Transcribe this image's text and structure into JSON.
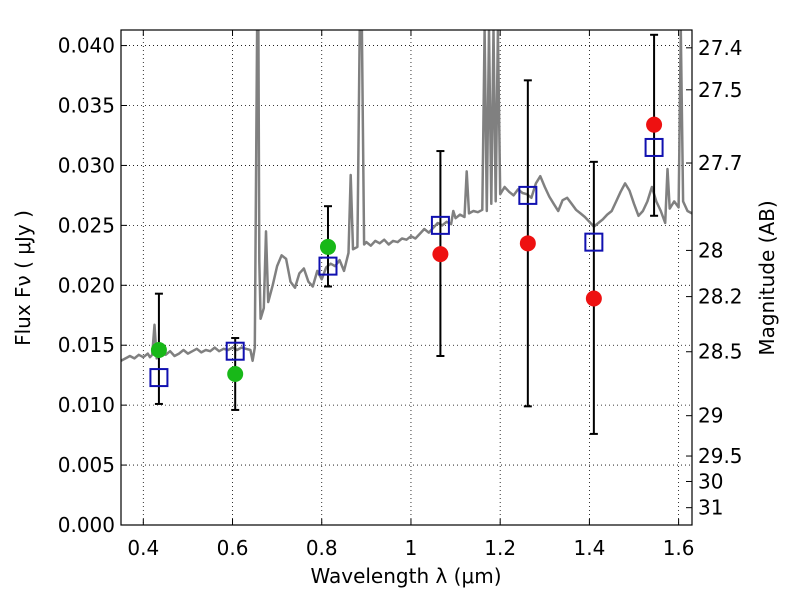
{
  "chart_data": {
    "type": "scatter",
    "xlabel": "Wavelength  λ (μm)",
    "ylabel": "Flux  Fν ( μJy )",
    "ylabel_right": "Magnitude (AB)",
    "xlim": [
      0.35,
      1.63
    ],
    "ylim": [
      0.0,
      0.0413
    ],
    "grid": true,
    "colors": {
      "green": "#18b818",
      "red": "#ee1111",
      "blue": "#1010b0",
      "spectrum": "#808080",
      "errorbar": "#000000"
    },
    "x_ticks": [
      0.4,
      0.6,
      0.8,
      1.0,
      1.2,
      1.4,
      1.6
    ],
    "x_tick_labels": [
      "0.4",
      "0.6",
      "0.8",
      "1",
      "1.2",
      "1.4",
      "1.6"
    ],
    "y_ticks": [
      0.0,
      0.005,
      0.01,
      0.015,
      0.02,
      0.025,
      0.03,
      0.035,
      0.04
    ],
    "y_tick_labels": [
      "0.000",
      "0.005",
      "0.010",
      "0.015",
      "0.020",
      "0.025",
      "0.030",
      "0.035",
      "0.040"
    ],
    "right_ticks": [
      {
        "mag": 27.4,
        "label": "27.4"
      },
      {
        "mag": 27.5,
        "label": "27.5"
      },
      {
        "mag": 27.7,
        "label": "27.7"
      },
      {
        "mag": 28.0,
        "label": "28"
      },
      {
        "mag": 28.2,
        "label": "28.2"
      },
      {
        "mag": 28.5,
        "label": "28.5"
      },
      {
        "mag": 29.0,
        "label": "29"
      },
      {
        "mag": 29.5,
        "label": "29.5"
      },
      {
        "mag": 30.0,
        "label": "30"
      },
      {
        "mag": 31.0,
        "label": "31"
      }
    ],
    "series": [
      {
        "marker": "circle",
        "color": "green",
        "points": [
          {
            "x": 0.435,
            "y": 0.0146
          },
          {
            "x": 0.606,
            "y": 0.0126
          },
          {
            "x": 0.814,
            "y": 0.0232
          }
        ]
      },
      {
        "marker": "circle",
        "color": "red",
        "points": [
          {
            "x": 1.066,
            "y": 0.0226
          },
          {
            "x": 1.262,
            "y": 0.0235
          },
          {
            "x": 1.41,
            "y": 0.0189
          },
          {
            "x": 1.545,
            "y": 0.0334
          }
        ]
      },
      {
        "marker": "square",
        "color": "blue",
        "points": [
          {
            "x": 0.435,
            "y": 0.0123,
            "yerr_low": 0.0101,
            "yerr_high": 0.0193
          },
          {
            "x": 0.606,
            "y": 0.0145,
            "yerr_low": 0.0096,
            "yerr_high": 0.0156
          },
          {
            "x": 0.814,
            "y": 0.0216,
            "yerr_low": 0.0199,
            "yerr_high": 0.0266
          },
          {
            "x": 1.066,
            "y": 0.025,
            "yerr_low": 0.0141,
            "yerr_high": 0.0312
          },
          {
            "x": 1.262,
            "y": 0.0275,
            "yerr_low": 0.0099,
            "yerr_high": 0.0371
          },
          {
            "x": 1.41,
            "y": 0.0236,
            "yerr_low": 0.0076,
            "yerr_high": 0.0303
          },
          {
            "x": 1.545,
            "y": 0.0315,
            "yerr_low": 0.0258,
            "yerr_high": 0.0409
          }
        ]
      },
      {
        "type": "line",
        "color": "spectrum",
        "points": [
          [
            0.35,
            0.0137
          ],
          [
            0.36,
            0.0139
          ],
          [
            0.37,
            0.0141
          ],
          [
            0.38,
            0.0139
          ],
          [
            0.39,
            0.0142
          ],
          [
            0.4,
            0.014
          ],
          [
            0.41,
            0.0143
          ],
          [
            0.415,
            0.014
          ],
          [
            0.42,
            0.0142
          ],
          [
            0.425,
            0.0167
          ],
          [
            0.43,
            0.0139
          ],
          [
            0.44,
            0.0144
          ],
          [
            0.45,
            0.0142
          ],
          [
            0.46,
            0.0145
          ],
          [
            0.47,
            0.0141
          ],
          [
            0.48,
            0.0143
          ],
          [
            0.49,
            0.0146
          ],
          [
            0.5,
            0.0143
          ],
          [
            0.51,
            0.0145
          ],
          [
            0.52,
            0.0147
          ],
          [
            0.53,
            0.0144
          ],
          [
            0.54,
            0.0146
          ],
          [
            0.55,
            0.0145
          ],
          [
            0.56,
            0.0148
          ],
          [
            0.57,
            0.0145
          ],
          [
            0.58,
            0.0147
          ],
          [
            0.59,
            0.0146
          ],
          [
            0.6,
            0.0148
          ],
          [
            0.61,
            0.0146
          ],
          [
            0.62,
            0.0148
          ],
          [
            0.63,
            0.0147
          ],
          [
            0.64,
            0.0146
          ],
          [
            0.645,
            0.0137
          ],
          [
            0.65,
            0.0148
          ],
          [
            0.655,
            0.0413
          ],
          [
            0.658,
            0.0413
          ],
          [
            0.66,
            0.022
          ],
          [
            0.663,
            0.0172
          ],
          [
            0.67,
            0.0181
          ],
          [
            0.675,
            0.0245
          ],
          [
            0.68,
            0.0186
          ],
          [
            0.69,
            0.02
          ],
          [
            0.7,
            0.0216
          ],
          [
            0.71,
            0.0225
          ],
          [
            0.72,
            0.0222
          ],
          [
            0.73,
            0.0203
          ],
          [
            0.74,
            0.0198
          ],
          [
            0.75,
            0.021
          ],
          [
            0.76,
            0.0214
          ],
          [
            0.77,
            0.0203
          ],
          [
            0.78,
            0.0199
          ],
          [
            0.79,
            0.0212
          ],
          [
            0.8,
            0.0205
          ],
          [
            0.81,
            0.0215
          ],
          [
            0.82,
            0.0218
          ],
          [
            0.83,
            0.0216
          ],
          [
            0.84,
            0.0221
          ],
          [
            0.85,
            0.0212
          ],
          [
            0.86,
            0.0227
          ],
          [
            0.865,
            0.0292
          ],
          [
            0.87,
            0.023
          ],
          [
            0.88,
            0.0232
          ],
          [
            0.885,
            0.0413
          ],
          [
            0.89,
            0.0413
          ],
          [
            0.895,
            0.0234
          ],
          [
            0.9,
            0.0236
          ],
          [
            0.91,
            0.0233
          ],
          [
            0.92,
            0.0237
          ],
          [
            0.93,
            0.0235
          ],
          [
            0.94,
            0.0238
          ],
          [
            0.95,
            0.0234
          ],
          [
            0.96,
            0.0237
          ],
          [
            0.97,
            0.0236
          ],
          [
            0.98,
            0.0239
          ],
          [
            0.99,
            0.0238
          ],
          [
            1.0,
            0.0241
          ],
          [
            1.01,
            0.0239
          ],
          [
            1.02,
            0.0243
          ],
          [
            1.03,
            0.0247
          ],
          [
            1.04,
            0.0244
          ],
          [
            1.05,
            0.0248
          ],
          [
            1.06,
            0.0252
          ],
          [
            1.07,
            0.025
          ],
          [
            1.08,
            0.0253
          ],
          [
            1.09,
            0.0251
          ],
          [
            1.095,
            0.0262
          ],
          [
            1.1,
            0.0256
          ],
          [
            1.11,
            0.0259
          ],
          [
            1.12,
            0.0257
          ],
          [
            1.125,
            0.0295
          ],
          [
            1.13,
            0.026
          ],
          [
            1.14,
            0.0262
          ],
          [
            1.15,
            0.0261
          ],
          [
            1.16,
            0.0263
          ],
          [
            1.165,
            0.0413
          ],
          [
            1.17,
            0.0262
          ],
          [
            1.175,
            0.0413
          ],
          [
            1.18,
            0.0268
          ],
          [
            1.185,
            0.0413
          ],
          [
            1.19,
            0.027
          ],
          [
            1.195,
            0.0413
          ],
          [
            1.2,
            0.0276
          ],
          [
            1.21,
            0.0282
          ],
          [
            1.22,
            0.0278
          ],
          [
            1.23,
            0.0275
          ],
          [
            1.24,
            0.028
          ],
          [
            1.25,
            0.0277
          ],
          [
            1.26,
            0.0276
          ],
          [
            1.27,
            0.0273
          ],
          [
            1.28,
            0.0285
          ],
          [
            1.29,
            0.0291
          ],
          [
            1.3,
            0.0282
          ],
          [
            1.31,
            0.0274
          ],
          [
            1.32,
            0.0268
          ],
          [
            1.33,
            0.0262
          ],
          [
            1.34,
            0.0271
          ],
          [
            1.35,
            0.0273
          ],
          [
            1.36,
            0.0268
          ],
          [
            1.37,
            0.0263
          ],
          [
            1.38,
            0.026
          ],
          [
            1.39,
            0.0257
          ],
          [
            1.4,
            0.0253
          ],
          [
            1.41,
            0.0249
          ],
          [
            1.42,
            0.0252
          ],
          [
            1.43,
            0.0255
          ],
          [
            1.44,
            0.0259
          ],
          [
            1.45,
            0.0262
          ],
          [
            1.46,
            0.027
          ],
          [
            1.47,
            0.0278
          ],
          [
            1.48,
            0.0285
          ],
          [
            1.49,
            0.0279
          ],
          [
            1.5,
            0.0268
          ],
          [
            1.51,
            0.0258
          ],
          [
            1.52,
            0.0262
          ],
          [
            1.53,
            0.027
          ],
          [
            1.54,
            0.0282
          ],
          [
            1.55,
            0.027
          ],
          [
            1.56,
            0.0262
          ],
          [
            1.57,
            0.0252
          ],
          [
            1.575,
            0.0297
          ],
          [
            1.58,
            0.0264
          ],
          [
            1.59,
            0.027
          ],
          [
            1.6,
            0.0265
          ],
          [
            1.605,
            0.0413
          ],
          [
            1.61,
            0.027
          ],
          [
            1.62,
            0.0262
          ],
          [
            1.63,
            0.026
          ]
        ]
      }
    ]
  }
}
